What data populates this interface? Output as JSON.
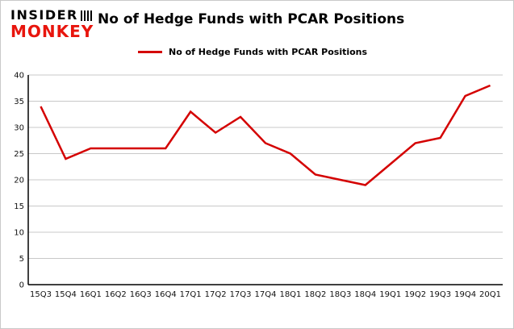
{
  "logo": {
    "line1": "INSIDER",
    "line2": "MONKEY"
  },
  "title": "No of Hedge Funds with PCAR Positions",
  "legend": {
    "label": "No of Hedge Funds with PCAR Positions"
  },
  "chart_data": {
    "type": "line",
    "title": "No of Hedge Funds with PCAR Positions",
    "categories": [
      "15Q3",
      "15Q4",
      "16Q1",
      "16Q2",
      "16Q3",
      "16Q4",
      "17Q1",
      "17Q2",
      "17Q3",
      "17Q4",
      "18Q1",
      "18Q2",
      "18Q3",
      "18Q4",
      "19Q1",
      "19Q2",
      "19Q3",
      "19Q4",
      "20Q1"
    ],
    "values": [
      34,
      24,
      26,
      26,
      26,
      26,
      33,
      29,
      32,
      27,
      25,
      21,
      20,
      19,
      23,
      27,
      28,
      36,
      38
    ],
    "xlabel": "",
    "ylabel": "",
    "ylim": [
      0,
      40
    ],
    "ytick_step": 5,
    "grid": true,
    "grid_color": "#c8c8c8",
    "axis_color": "#000000",
    "line_color": "#d40000",
    "legend_position": "top"
  }
}
